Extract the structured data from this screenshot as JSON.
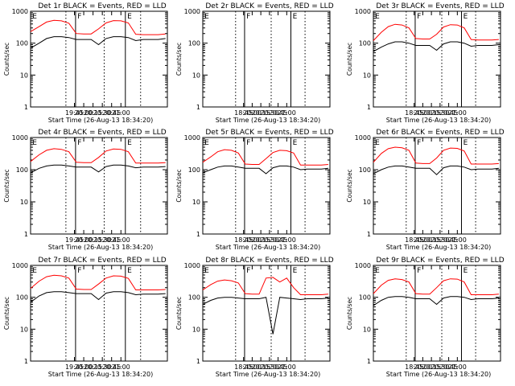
{
  "figure": {
    "ylabel": "Counts/sec",
    "xlabel": "Start Time (26-Aug-13 18:34:20)",
    "colors": {
      "events": "#000000",
      "lld": "#ff0000"
    },
    "log_scale": true
  },
  "chart_data": [
    {
      "type": "line",
      "title": "Det 1r BLACK = Events, RED = LLD",
      "xlabel": "Start Time (26-Aug-13 18:34:20)",
      "ylabel": "Counts/sec",
      "y_scale": "log",
      "ylim": [
        1,
        1000
      ],
      "ytick_labels": [
        "1",
        "10",
        "100",
        "1000"
      ],
      "xtick_labels": [
        "19:45",
        "20:00",
        "20:15",
        "20:30",
        "20:45",
        "21:00"
      ],
      "markers": [
        "E",
        "F",
        "E"
      ],
      "x": [
        18.57,
        18.8,
        19.0,
        19.2,
        19.4,
        19.6,
        19.8,
        20.0,
        20.2,
        20.4,
        20.6,
        20.8,
        21.0,
        21.2,
        21.4,
        21.6,
        21.8,
        22.0,
        22.2
      ],
      "series": [
        {
          "name": "Events",
          "color": "#000000",
          "values": [
            70,
            100,
            140,
            160,
            160,
            150,
            130,
            130,
            130,
            90,
            140,
            160,
            160,
            150,
            120,
            130,
            130,
            130,
            140
          ]
        },
        {
          "name": "LLD",
          "color": "#ff0000",
          "values": [
            230,
            330,
            460,
            520,
            500,
            420,
            200,
            195,
            195,
            280,
            430,
            510,
            500,
            430,
            190,
            185,
            185,
            185,
            195
          ]
        }
      ]
    },
    {
      "type": "line",
      "title": "Det 2r BLACK = Events, RED = LLD",
      "xlabel": "Start Time (26-Aug-13 18:34:20)",
      "ylabel": "Counts/sec",
      "y_scale": "log",
      "ylim": [
        1,
        1000
      ],
      "ytick_labels": [
        "1",
        "10",
        "100",
        "1000"
      ],
      "xtick_labels": [
        "18:45",
        "20:00",
        "20:15",
        "20:30",
        "20:45",
        "21:00"
      ],
      "markers": [
        "E",
        "F",
        "E"
      ],
      "x": [],
      "series": []
    },
    {
      "type": "line",
      "title": "Det 3r BLACK = Events, RED = LLD",
      "xlabel": "Start Time (26-Aug-13 18:34:20)",
      "ylabel": "Counts/sec",
      "y_scale": "log",
      "ylim": [
        1,
        1000
      ],
      "ytick_labels": [
        "1",
        "10",
        "100",
        "1000"
      ],
      "xtick_labels": [
        "18:45",
        "20:00",
        "20:15",
        "20:30",
        "20:45",
        "21:00"
      ],
      "markers": [
        "E",
        "F",
        "E"
      ],
      "x": [
        18.57,
        18.8,
        19.0,
        19.2,
        19.4,
        19.6,
        19.8,
        20.0,
        20.2,
        20.4,
        20.6,
        20.8,
        21.0,
        21.2,
        21.4,
        21.6,
        21.8,
        22.0,
        22.2
      ],
      "series": [
        {
          "name": "Events",
          "color": "#000000",
          "values": [
            55,
            75,
            95,
            110,
            110,
            100,
            85,
            85,
            85,
            60,
            95,
            110,
            110,
            100,
            80,
            85,
            85,
            85,
            90
          ]
        },
        {
          "name": "LLD",
          "color": "#ff0000",
          "values": [
            120,
            220,
            330,
            390,
            370,
            300,
            140,
            135,
            135,
            190,
            320,
            380,
            370,
            300,
            130,
            125,
            125,
            125,
            130
          ]
        }
      ]
    },
    {
      "type": "line",
      "title": "Det 4r BLACK = Events, RED = LLD",
      "xlabel": "Start Time (26-Aug-13 18:34:20)",
      "ylabel": "Counts/sec",
      "y_scale": "log",
      "ylim": [
        1,
        1000
      ],
      "ytick_labels": [
        "1",
        "10",
        "100",
        "1000"
      ],
      "xtick_labels": [
        "19:45",
        "20:00",
        "20:15",
        "20:30",
        "20:45",
        "21:00"
      ],
      "markers": [
        "E",
        "F",
        "E"
      ],
      "x": [
        18.57,
        18.8,
        19.0,
        19.2,
        19.4,
        19.6,
        19.8,
        20.0,
        20.2,
        20.4,
        20.6,
        20.8,
        21.0,
        21.2,
        21.4,
        21.6,
        21.8,
        22.0,
        22.2
      ],
      "series": [
        {
          "name": "Events",
          "color": "#000000",
          "values": [
            80,
            110,
            130,
            140,
            140,
            130,
            120,
            120,
            120,
            85,
            125,
            140,
            140,
            130,
            115,
            120,
            120,
            120,
            125
          ]
        },
        {
          "name": "LLD",
          "color": "#ff0000",
          "values": [
            180,
            290,
            400,
            450,
            430,
            360,
            170,
            165,
            165,
            240,
            380,
            440,
            430,
            360,
            160,
            160,
            160,
            160,
            165
          ]
        }
      ]
    },
    {
      "type": "line",
      "title": "Det 5r BLACK = Events, RED = LLD",
      "xlabel": "Start Time (26-Aug-13 18:34:20)",
      "ylabel": "Counts/sec",
      "y_scale": "log",
      "ylim": [
        1,
        1000
      ],
      "ytick_labels": [
        "1",
        "10",
        "100",
        "1000"
      ],
      "xtick_labels": [
        "18:45",
        "20:00",
        "20:15",
        "20:30",
        "20:45",
        "21:00"
      ],
      "markers": [
        "E",
        "F",
        "E"
      ],
      "x": [
        18.57,
        18.8,
        19.0,
        19.2,
        19.4,
        19.6,
        19.8,
        20.0,
        20.2,
        20.4,
        20.6,
        20.8,
        21.0,
        21.2,
        21.4,
        21.6,
        21.8,
        22.0,
        22.2
      ],
      "series": [
        {
          "name": "Events",
          "color": "#000000",
          "values": [
            80,
            100,
            120,
            130,
            130,
            120,
            110,
            110,
            110,
            75,
            115,
            130,
            130,
            120,
            100,
            105,
            105,
            105,
            110
          ]
        },
        {
          "name": "LLD",
          "color": "#ff0000",
          "values": [
            170,
            250,
            360,
            420,
            400,
            330,
            150,
            145,
            145,
            220,
            340,
            400,
            390,
            330,
            140,
            140,
            140,
            140,
            145
          ]
        }
      ]
    },
    {
      "type": "line",
      "title": "Det 6r BLACK = Events, RED = LLD",
      "xlabel": "Start Time (26-Aug-13 18:34:20)",
      "ylabel": "Counts/sec",
      "y_scale": "log",
      "ylim": [
        1,
        1000
      ],
      "ytick_labels": [
        "1",
        "10",
        "100",
        "1000"
      ],
      "xtick_labels": [
        "18:45",
        "20:00",
        "20:15",
        "20:30",
        "20:45",
        "21:00"
      ],
      "markers": [
        "E",
        "F",
        "E"
      ],
      "x": [
        18.57,
        18.8,
        19.0,
        19.2,
        19.4,
        19.6,
        19.8,
        20.0,
        20.2,
        20.4,
        20.6,
        20.8,
        21.0,
        21.2,
        21.4,
        21.6,
        21.8,
        22.0,
        22.2
      ],
      "series": [
        {
          "name": "Events",
          "color": "#000000",
          "values": [
            75,
            100,
            120,
            130,
            130,
            120,
            110,
            110,
            110,
            70,
            115,
            130,
            130,
            120,
            100,
            105,
            105,
            105,
            110
          ]
        },
        {
          "name": "LLD",
          "color": "#ff0000",
          "values": [
            170,
            320,
            450,
            500,
            480,
            400,
            160,
            155,
            155,
            230,
            400,
            470,
            460,
            380,
            150,
            150,
            150,
            150,
            155
          ]
        }
      ]
    },
    {
      "type": "line",
      "title": "Det 7r BLACK = Events, RED = LLD",
      "xlabel": "Start Time (26-Aug-13 18:34:20)",
      "ylabel": "Counts/sec",
      "y_scale": "log",
      "ylim": [
        1,
        1000
      ],
      "ytick_labels": [
        "1",
        "10",
        "100",
        "1000"
      ],
      "xtick_labels": [
        "19:45",
        "20:00",
        "20:15",
        "20:30",
        "20:45",
        "21:00"
      ],
      "markers": [
        "E",
        "F",
        "E"
      ],
      "x": [
        18.57,
        18.8,
        19.0,
        19.2,
        19.4,
        19.6,
        19.8,
        20.0,
        20.2,
        20.4,
        20.6,
        20.8,
        21.0,
        21.2,
        21.4,
        21.6,
        21.8,
        22.0,
        22.2
      ],
      "series": [
        {
          "name": "Events",
          "color": "#000000",
          "values": [
            70,
            110,
            140,
            150,
            150,
            140,
            130,
            130,
            130,
            85,
            135,
            150,
            150,
            140,
            120,
            125,
            125,
            125,
            130
          ]
        },
        {
          "name": "LLD",
          "color": "#ff0000",
          "values": [
            190,
            320,
            440,
            490,
            470,
            400,
            180,
            175,
            175,
            260,
            400,
            470,
            460,
            390,
            170,
            170,
            170,
            170,
            175
          ]
        }
      ]
    },
    {
      "type": "line",
      "title": "Det 8r BLACK = Events, RED = LLD",
      "xlabel": "Start Time (26-Aug-13 18:34:20)",
      "ylabel": "Counts/sec",
      "y_scale": "log",
      "ylim": [
        1,
        1000
      ],
      "ytick_labels": [
        "1",
        "10",
        "100",
        "1000"
      ],
      "xtick_labels": [
        "18:45",
        "20:00",
        "20:15",
        "20:30",
        "20:45",
        "21:00"
      ],
      "markers": [
        "E",
        "F",
        "E"
      ],
      "x": [
        18.57,
        18.8,
        19.0,
        19.2,
        19.4,
        19.6,
        19.8,
        20.0,
        20.2,
        20.4,
        20.6,
        20.8,
        21.0,
        21.2,
        21.4,
        21.6,
        21.8,
        22.0,
        22.2
      ],
      "series": [
        {
          "name": "Events",
          "color": "#000000",
          "values": [
            60,
            80,
            95,
            100,
            100,
            95,
            90,
            90,
            90,
            100,
            7,
            100,
            95,
            90,
            85,
            90,
            90,
            90,
            95
          ]
        },
        {
          "name": "LLD",
          "color": "#ff0000",
          "values": [
            170,
            250,
            320,
            350,
            330,
            280,
            130,
            125,
            125,
            400,
            420,
            300,
            400,
            200,
            120,
            120,
            120,
            120,
            125
          ]
        }
      ]
    },
    {
      "type": "line",
      "title": "Det 9r BLACK = Events, RED = LLD",
      "xlabel": "Start Time (26-Aug-13 18:34:20)",
      "ylabel": "Counts/sec",
      "y_scale": "log",
      "ylim": [
        1,
        1000
      ],
      "ytick_labels": [
        "1",
        "10",
        "100",
        "1000"
      ],
      "xtick_labels": [
        "18:45",
        "20:00",
        "20:15",
        "20:30",
        "20:45",
        "21:00"
      ],
      "markers": [
        "E",
        "F",
        "E"
      ],
      "x": [
        18.57,
        18.8,
        19.0,
        19.2,
        19.4,
        19.6,
        19.8,
        20.0,
        20.2,
        20.4,
        20.6,
        20.8,
        21.0,
        21.2,
        21.4,
        21.6,
        21.8,
        22.0,
        22.2
      ],
      "series": [
        {
          "name": "Events",
          "color": "#000000",
          "values": [
            55,
            80,
            100,
            105,
            105,
            100,
            90,
            90,
            90,
            60,
            95,
            105,
            105,
            100,
            85,
            90,
            90,
            90,
            95
          ]
        },
        {
          "name": "LLD",
          "color": "#ff0000",
          "values": [
            130,
            240,
            340,
            380,
            360,
            300,
            130,
            125,
            125,
            200,
            330,
            380,
            370,
            300,
            120,
            120,
            120,
            120,
            125
          ]
        }
      ]
    }
  ]
}
